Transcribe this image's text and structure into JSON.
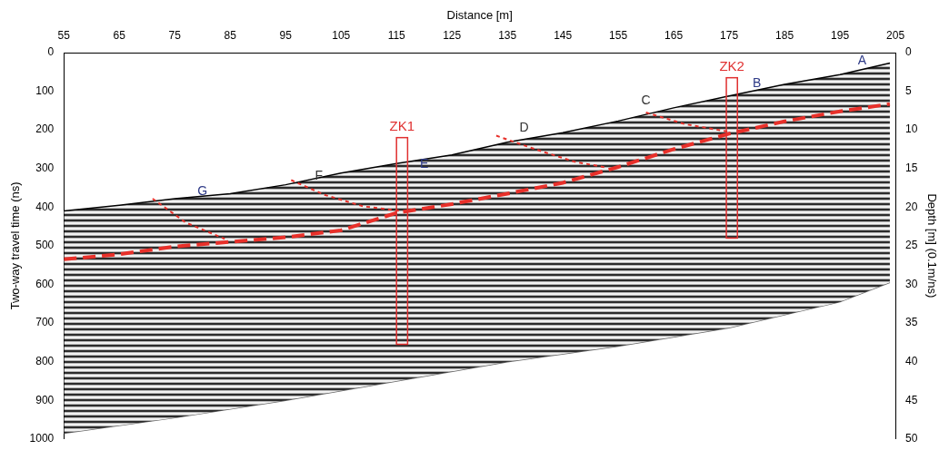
{
  "chart_data": {
    "type": "line",
    "x_label": "Distance [m]",
    "y_label": "Two-way travel time (ns)",
    "y2_label": "Depth [m] (0.1m/ns)",
    "xlim": [
      55,
      205
    ],
    "xticks": [
      55,
      65,
      75,
      85,
      95,
      105,
      115,
      125,
      135,
      145,
      155,
      165,
      175,
      185,
      195,
      205
    ],
    "ylim": [
      0,
      1000
    ],
    "yticks": [
      0,
      100,
      200,
      300,
      400,
      500,
      600,
      700,
      800,
      900,
      1000
    ],
    "y2lim": [
      0,
      50
    ],
    "y2ticks": [
      0,
      5,
      10,
      15,
      20,
      25,
      30,
      35,
      40,
      45,
      50
    ],
    "grid": false,
    "series": [
      {
        "color": "#000000",
        "line_style": "solid",
        "x": [
          55,
          65,
          75,
          85,
          95,
          105,
          115,
          125,
          135,
          145,
          155,
          165,
          175,
          185,
          195,
          204
        ],
        "values": [
          410,
          395,
          378,
          365,
          342,
          312,
          287,
          265,
          232,
          207,
          177,
          143,
          112,
          82,
          57,
          27
        ]
      },
      {
        "color": "#666666",
        "line_style": "solid",
        "x": [
          55,
          75,
          95,
          115,
          135,
          155,
          175,
          195,
          204
        ],
        "values": [
          985,
          945,
          900,
          850,
          800,
          760,
          712,
          645,
          595
        ]
      },
      {
        "color": "#e8302a",
        "line_style": "dashed",
        "x": [
          55,
          65,
          75,
          85,
          95,
          105,
          115,
          125,
          135,
          145,
          155,
          165,
          175,
          185,
          195,
          204
        ],
        "values": [
          535,
          522,
          502,
          490,
          478,
          460,
          415,
          392,
          365,
          337,
          296,
          250,
          210,
          178,
          152,
          133
        ]
      },
      {
        "color": "#e8302a",
        "line_style": "dotted",
        "x": [
          71,
          77,
          84
        ],
        "values": [
          378,
          440,
          482
        ]
      },
      {
        "color": "#e8302a",
        "line_style": "dotted",
        "x": [
          96,
          102,
          109,
          116
        ],
        "values": [
          330,
          368,
          398,
          410
        ]
      },
      {
        "color": "#e8302a",
        "line_style": "dotted",
        "x": [
          133,
          140,
          147,
          153
        ],
        "values": [
          215,
          250,
          282,
          298
        ]
      },
      {
        "color": "#e8302a",
        "line_style": "dotted",
        "x": [
          160,
          167,
          175
        ],
        "values": [
          155,
          185,
          205
        ]
      }
    ],
    "annotations": [
      {
        "text": "A",
        "x": 199,
        "y": 22,
        "color": "#2e3a87"
      },
      {
        "text": "B",
        "x": 180,
        "y": 80,
        "color": "#2e3a87"
      },
      {
        "text": "C",
        "x": 160,
        "y": 125,
        "color": "#333333"
      },
      {
        "text": "D",
        "x": 138,
        "y": 195,
        "color": "#333333"
      },
      {
        "text": "E",
        "x": 120,
        "y": 290,
        "color": "#2e3a87"
      },
      {
        "text": "F",
        "x": 101,
        "y": 320,
        "color": "#333333"
      },
      {
        "text": "G",
        "x": 80,
        "y": 360,
        "color": "#2e3a87"
      }
    ],
    "boreholes": [
      {
        "label": "ZK1",
        "x": [
          115,
          117
        ],
        "y": [
          220,
          755
        ],
        "color": "#e03030"
      },
      {
        "label": "ZK2",
        "x": [
          174.5,
          176.5
        ],
        "y": [
          65,
          480
        ],
        "color": "#e03030"
      }
    ]
  }
}
